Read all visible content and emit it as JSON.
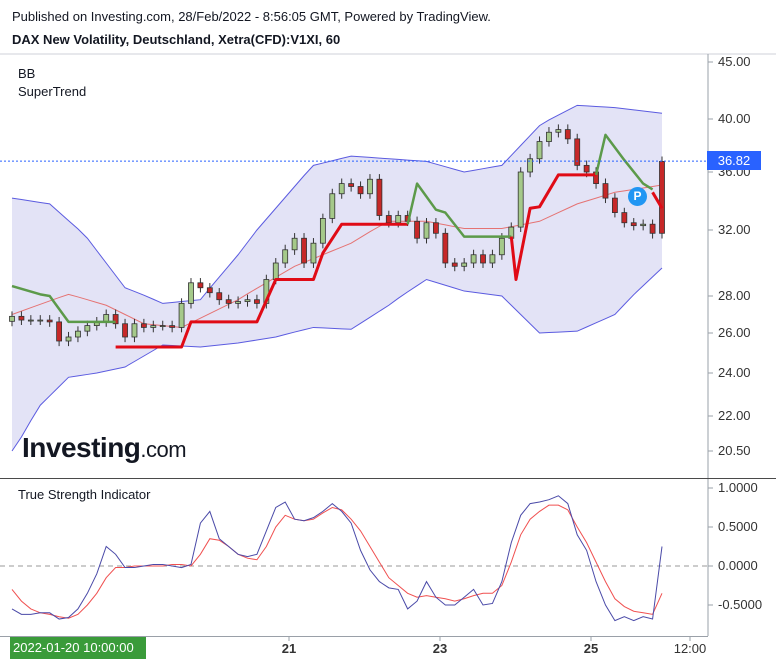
{
  "header": {
    "published": "Published on Investing.com, 28/Feb/2022 - 8:56:05 GMT, Powered by TradingView.",
    "symbol": "DAX New Volatility, Deutschland, Xetra(CFD):V1XI, 60"
  },
  "legend": {
    "bb": "BB",
    "supertrend": "SuperTrend"
  },
  "watermark": {
    "brand": "Investing",
    "suffix": ".com"
  },
  "colors": {
    "up_candle": "#a5c98a",
    "down_candle": "#c62828",
    "bb_band": "#5b5be0",
    "bb_fill": "#e3e3f6",
    "bb_mid": "#e57373",
    "supertrend_up": "#5c9a4a",
    "supertrend_down": "#e00b16",
    "tsi_line": "#4a4aa8",
    "tsi_signal": "#f05050",
    "price_line": "#2962ff"
  },
  "current_price": {
    "value": 36.82,
    "label": "36.82"
  },
  "marker": {
    "label": "P"
  },
  "crosshair_time": "2022-01-20 10:00:00",
  "chart_data": [
    {
      "type": "candlestick",
      "x_ticks": [
        "21",
        "23",
        "25",
        "12:00"
      ],
      "y_ticks": [
        "45.00",
        "40.00",
        "36.00",
        "32.00",
        "28.00",
        "26.00",
        "24.00",
        "22.00",
        "20.50"
      ],
      "ylim": [
        20.0,
        45.0
      ],
      "y_scale": "log",
      "grid": false,
      "series": [
        {
          "name": "BB",
          "kind": "bollinger"
        },
        {
          "name": "SuperTrend",
          "kind": "supertrend"
        }
      ]
    },
    {
      "type": "line",
      "title": "True Strength Indicator",
      "y_ticks": [
        "1.0000",
        "0.5000",
        "0.0000",
        "-0.5000"
      ],
      "ylim": [
        -0.9,
        1.0
      ],
      "zero_line": 0.0,
      "tsi": [
        -0.55,
        -0.62,
        -0.62,
        -0.6,
        -0.6,
        -0.68,
        -0.66,
        -0.55,
        -0.35,
        -0.1,
        0.25,
        0.15,
        -0.02,
        -0.02,
        0.0,
        0.02,
        0.02,
        0.0,
        -0.02,
        0.02,
        0.55,
        0.7,
        0.35,
        0.25,
        0.15,
        0.12,
        0.15,
        0.45,
        0.75,
        0.82,
        0.6,
        0.58,
        0.62,
        0.7,
        0.8,
        0.7,
        0.55,
        0.2,
        -0.05,
        -0.2,
        -0.28,
        -0.3,
        -0.55,
        -0.45,
        -0.2,
        -0.4,
        -0.5,
        -0.5,
        -0.4,
        -0.3,
        -0.5,
        -0.48,
        -0.2,
        0.3,
        0.65,
        0.8,
        0.82,
        0.85,
        0.9,
        0.8,
        0.4,
        0.2,
        -0.2,
        -0.5,
        -0.7,
        -0.65,
        -0.7,
        -0.65,
        -0.68,
        0.25
      ],
      "signal": [
        -0.3,
        -0.45,
        -0.55,
        -0.6,
        -0.62,
        -0.65,
        -0.67,
        -0.62,
        -0.5,
        -0.35,
        -0.15,
        -0.02,
        -0.02,
        0.0,
        0.0,
        0.0,
        0.0,
        0.02,
        0.02,
        0.0,
        0.15,
        0.35,
        0.33,
        0.25,
        0.15,
        0.1,
        0.08,
        0.25,
        0.5,
        0.65,
        0.6,
        0.58,
        0.6,
        0.68,
        0.75,
        0.72,
        0.6,
        0.45,
        0.25,
        0.05,
        -0.15,
        -0.25,
        -0.35,
        -0.4,
        -0.38,
        -0.4,
        -0.42,
        -0.45,
        -0.42,
        -0.38,
        -0.35,
        -0.35,
        -0.25,
        0.05,
        0.4,
        0.6,
        0.7,
        0.78,
        0.78,
        0.72,
        0.5,
        0.3,
        0.05,
        -0.2,
        -0.42,
        -0.52,
        -0.58,
        -0.6,
        -0.62,
        -0.35
      ]
    }
  ]
}
